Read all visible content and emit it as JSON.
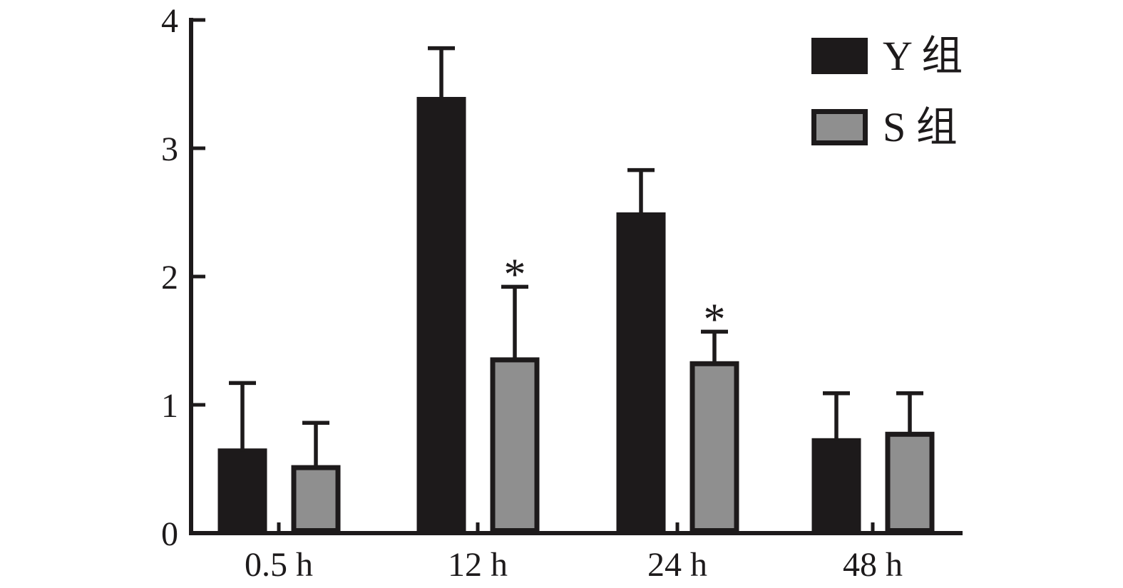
{
  "figure": {
    "background": "#ffffff",
    "axis_color": "#1d1a1b",
    "text_color": "#1d1a1b"
  },
  "legend": {
    "position": "top-right",
    "items": [
      {
        "label": "Y 组",
        "swatch": "black-filled-rect"
      },
      {
        "label": "S 组",
        "swatch": "gray-rect-black-outline"
      }
    ]
  },
  "chart_data": {
    "type": "bar",
    "title": "",
    "xlabel": "",
    "ylabel": "",
    "grid": false,
    "legend_position": "top-right",
    "error_bars": "upper-only",
    "ylim": [
      0,
      4
    ],
    "yticks": [
      0,
      1,
      2,
      3,
      4
    ],
    "categories": [
      "0.5 h",
      "12 h",
      "24 h",
      "48 h"
    ],
    "series": [
      {
        "name": "Y 组",
        "fill": "#1d1a1b",
        "outline": "none",
        "values": [
          0.66,
          3.4,
          2.5,
          0.74
        ],
        "errors_plus": [
          0.51,
          0.38,
          0.33,
          0.35
        ],
        "significance": [
          "",
          "",
          "",
          ""
        ]
      },
      {
        "name": "S 组",
        "fill": "#8f8f8f",
        "outline": "#1d1a1b",
        "values": [
          0.53,
          1.37,
          1.34,
          0.79
        ],
        "errors_plus": [
          0.33,
          0.55,
          0.23,
          0.3
        ],
        "significance": [
          "",
          "*",
          "*",
          ""
        ]
      }
    ],
    "significance_symbol": "*"
  }
}
